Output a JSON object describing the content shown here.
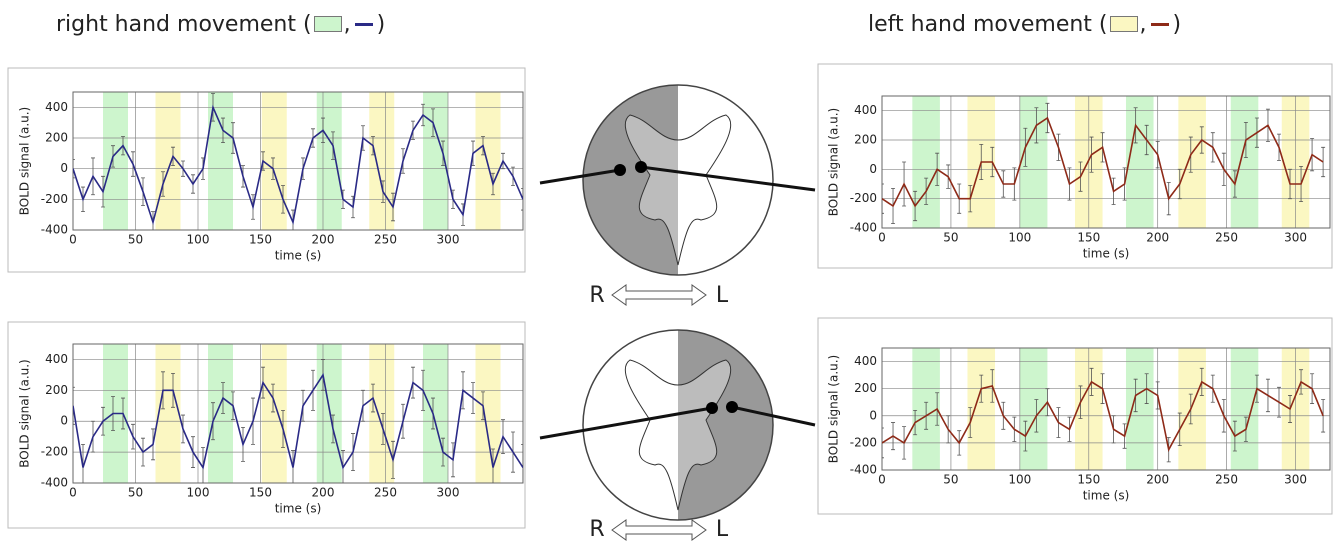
{
  "header": {
    "right": {
      "prefix": "right hand movement (",
      "sep": ",",
      "suffix": ")"
    },
    "left": {
      "prefix": "left hand movement (",
      "sep": ",",
      "suffix": ")"
    }
  },
  "center": [
    {
      "left": "R",
      "right": "L"
    },
    {
      "left": "R",
      "right": "L"
    }
  ],
  "chart_data": [
    {
      "type": "line",
      "xlabel": "time (s)",
      "ylabel": "BOLD signal (a.u.)",
      "xlim": [
        0,
        360
      ],
      "ylim": [
        -400,
        500
      ],
      "xticks": [
        0,
        50,
        100,
        150,
        200,
        250,
        300
      ],
      "yticks": [
        -400,
        -200,
        0,
        200,
        400
      ],
      "grid": true,
      "blocks": [
        {
          "start": 24,
          "end": 44,
          "color": "#cdf5cd"
        },
        {
          "start": 66,
          "end": 86,
          "color": "#fbf7c2"
        },
        {
          "start": 108,
          "end": 128,
          "color": "#cdf5cd"
        },
        {
          "start": 151,
          "end": 171,
          "color": "#fbf7c2"
        },
        {
          "start": 195,
          "end": 215,
          "color": "#cdf5cd"
        },
        {
          "start": 237,
          "end": 257,
          "color": "#fbf7c2"
        },
        {
          "start": 280,
          "end": 300,
          "color": "#cdf5cd"
        },
        {
          "start": 322,
          "end": 342,
          "color": "#fbf7c2"
        }
      ],
      "x": [
        0,
        8,
        16,
        24,
        32,
        40,
        48,
        56,
        64,
        72,
        80,
        88,
        96,
        104,
        112,
        120,
        128,
        136,
        144,
        152,
        160,
        168,
        176,
        184,
        192,
        200,
        208,
        216,
        224,
        232,
        240,
        248,
        256,
        264,
        272,
        280,
        288,
        296,
        304,
        312,
        320,
        328,
        336,
        344,
        352,
        360
      ],
      "series": [
        {
          "color": "#2a2a86",
          "values": [
            0,
            -200,
            -50,
            -150,
            80,
            150,
            30,
            -150,
            -350,
            -100,
            80,
            0,
            -100,
            0,
            400,
            250,
            200,
            -50,
            -250,
            50,
            0,
            -200,
            -350,
            0,
            200,
            250,
            150,
            -200,
            -250,
            200,
            150,
            -150,
            -250,
            50,
            250,
            350,
            300,
            100,
            -200,
            -300,
            100,
            150,
            -100,
            50,
            -50,
            -200
          ],
          "errors": [
            60,
            80,
            120,
            100,
            70,
            60,
            80,
            90,
            70,
            80,
            60,
            50,
            60,
            70,
            90,
            80,
            100,
            70,
            80,
            60,
            70,
            90,
            80,
            70,
            60,
            80,
            90,
            60,
            70,
            80,
            60,
            70,
            90,
            80,
            60,
            70,
            90,
            80,
            60,
            70,
            80,
            60,
            70,
            50,
            60,
            70
          ]
        }
      ]
    },
    {
      "type": "line",
      "xlabel": "time (s)",
      "ylabel": "BOLD signal (a.u.)",
      "xlim": [
        0,
        360
      ],
      "ylim": [
        -400,
        500
      ],
      "xticks": [
        0,
        50,
        100,
        150,
        200,
        250,
        300
      ],
      "yticks": [
        -400,
        -200,
        0,
        200,
        400
      ],
      "grid": true,
      "blocks": [
        {
          "start": 24,
          "end": 44,
          "color": "#cdf5cd"
        },
        {
          "start": 66,
          "end": 86,
          "color": "#fbf7c2"
        },
        {
          "start": 108,
          "end": 128,
          "color": "#cdf5cd"
        },
        {
          "start": 151,
          "end": 171,
          "color": "#fbf7c2"
        },
        {
          "start": 195,
          "end": 215,
          "color": "#cdf5cd"
        },
        {
          "start": 237,
          "end": 257,
          "color": "#fbf7c2"
        },
        {
          "start": 280,
          "end": 300,
          "color": "#cdf5cd"
        },
        {
          "start": 322,
          "end": 342,
          "color": "#fbf7c2"
        }
      ],
      "x": [
        0,
        8,
        16,
        24,
        32,
        40,
        48,
        56,
        64,
        72,
        80,
        88,
        96,
        104,
        112,
        120,
        128,
        136,
        144,
        152,
        160,
        168,
        176,
        184,
        192,
        200,
        208,
        216,
        224,
        232,
        240,
        248,
        256,
        264,
        272,
        280,
        288,
        296,
        304,
        312,
        320,
        328,
        336,
        344,
        352,
        360
      ],
      "series": [
        {
          "color": "#2a2a86",
          "values": [
            100,
            -300,
            -100,
            0,
            50,
            50,
            -100,
            -200,
            -150,
            200,
            200,
            -50,
            -200,
            -300,
            0,
            150,
            100,
            -150,
            0,
            250,
            150,
            -50,
            -300,
            100,
            200,
            300,
            -50,
            -300,
            -200,
            100,
            150,
            -50,
            -250,
            0,
            250,
            200,
            50,
            -200,
            -250,
            200,
            150,
            100,
            -300,
            -100,
            -200,
            -300
          ],
          "errors": [
            120,
            150,
            100,
            90,
            110,
            100,
            80,
            90,
            100,
            120,
            110,
            90,
            100,
            130,
            120,
            100,
            90,
            110,
            150,
            100,
            90,
            120,
            110,
            100,
            130,
            100,
            90,
            110,
            120,
            100,
            90,
            100,
            120,
            110,
            100,
            130,
            100,
            90,
            110,
            120,
            100,
            90,
            120,
            110,
            130,
            150
          ]
        }
      ]
    },
    {
      "type": "line",
      "xlabel": "time (s)",
      "ylabel": "BOLD signal (a.u.)",
      "xlim": [
        0,
        325
      ],
      "ylim": [
        -400,
        500
      ],
      "xticks": [
        0,
        50,
        100,
        150,
        200,
        250,
        300
      ],
      "yticks": [
        -400,
        -200,
        0,
        200,
        400
      ],
      "grid": true,
      "blocks": [
        {
          "start": 22,
          "end": 42,
          "color": "#cdf5cd"
        },
        {
          "start": 62,
          "end": 82,
          "color": "#fbf7c2"
        },
        {
          "start": 100,
          "end": 120,
          "color": "#cdf5cd"
        },
        {
          "start": 140,
          "end": 160,
          "color": "#fbf7c2"
        },
        {
          "start": 177,
          "end": 197,
          "color": "#cdf5cd"
        },
        {
          "start": 215,
          "end": 235,
          "color": "#fbf7c2"
        },
        {
          "start": 253,
          "end": 273,
          "color": "#cdf5cd"
        },
        {
          "start": 290,
          "end": 310,
          "color": "#fbf7c2"
        }
      ],
      "x": [
        0,
        8,
        16,
        24,
        32,
        40,
        48,
        56,
        64,
        72,
        80,
        88,
        96,
        104,
        112,
        120,
        128,
        136,
        144,
        152,
        160,
        168,
        176,
        184,
        192,
        200,
        208,
        216,
        224,
        232,
        240,
        248,
        256,
        264,
        272,
        280,
        288,
        296,
        304,
        312,
        320
      ],
      "series": [
        {
          "color": "#8e2a18",
          "values": [
            -200,
            -250,
            -100,
            -250,
            -150,
            0,
            -50,
            -200,
            -200,
            50,
            50,
            -100,
            -100,
            150,
            300,
            350,
            150,
            -100,
            -50,
            100,
            150,
            -150,
            -100,
            300,
            200,
            100,
            -200,
            -100,
            100,
            200,
            150,
            0,
            -100,
            200,
            250,
            300,
            150,
            -100,
            -100,
            100,
            50
          ],
          "errors": [
            100,
            120,
            150,
            100,
            90,
            110,
            80,
            100,
            90,
            120,
            100,
            90,
            110,
            130,
            120,
            100,
            90,
            110,
            100,
            120,
            100,
            90,
            110,
            120,
            100,
            90,
            110,
            100,
            120,
            90,
            100,
            110,
            90,
            120,
            100,
            110,
            90,
            100,
            120,
            110,
            100
          ]
        }
      ]
    },
    {
      "type": "line",
      "xlabel": "time (s)",
      "ylabel": "BOLD signal (a.u.)",
      "xlim": [
        0,
        325
      ],
      "ylim": [
        -400,
        500
      ],
      "xticks": [
        0,
        50,
        100,
        150,
        200,
        250,
        300
      ],
      "yticks": [
        -400,
        -200,
        0,
        200,
        400
      ],
      "grid": true,
      "blocks": [
        {
          "start": 22,
          "end": 42,
          "color": "#cdf5cd"
        },
        {
          "start": 62,
          "end": 82,
          "color": "#fbf7c2"
        },
        {
          "start": 100,
          "end": 120,
          "color": "#cdf5cd"
        },
        {
          "start": 140,
          "end": 160,
          "color": "#fbf7c2"
        },
        {
          "start": 177,
          "end": 197,
          "color": "#cdf5cd"
        },
        {
          "start": 215,
          "end": 235,
          "color": "#fbf7c2"
        },
        {
          "start": 253,
          "end": 273,
          "color": "#cdf5cd"
        },
        {
          "start": 290,
          "end": 310,
          "color": "#fbf7c2"
        }
      ],
      "x": [
        0,
        8,
        16,
        24,
        32,
        40,
        48,
        56,
        64,
        72,
        80,
        88,
        96,
        104,
        112,
        120,
        128,
        136,
        144,
        152,
        160,
        168,
        176,
        184,
        192,
        200,
        208,
        216,
        224,
        232,
        240,
        248,
        256,
        264,
        272,
        280,
        288,
        296,
        304,
        312,
        320
      ],
      "series": [
        {
          "color": "#8e2a18",
          "values": [
            -200,
            -150,
            -200,
            -50,
            0,
            50,
            -100,
            -200,
            -50,
            200,
            220,
            0,
            -100,
            -150,
            0,
            100,
            -50,
            -100,
            100,
            250,
            200,
            -100,
            -150,
            150,
            200,
            150,
            -250,
            -100,
            50,
            250,
            200,
            0,
            -150,
            -100,
            200,
            150,
            100,
            50,
            250,
            200,
            0
          ],
          "errors": [
            110,
            100,
            120,
            90,
            100,
            120,
            100,
            90,
            110,
            100,
            120,
            100,
            90,
            110,
            120,
            100,
            110,
            90,
            120,
            100,
            110,
            100,
            90,
            120,
            110,
            100,
            90,
            120,
            110,
            100,
            100,
            120,
            110,
            90,
            100,
            120,
            110,
            100,
            90,
            110,
            120
          ]
        }
      ]
    }
  ]
}
